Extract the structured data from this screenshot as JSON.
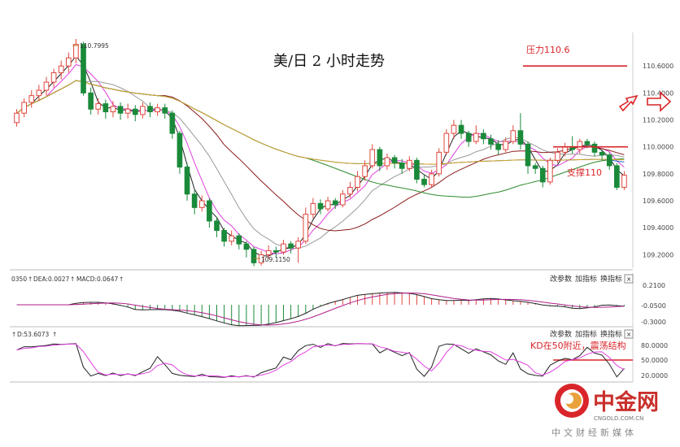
{
  "chart_data": [
    {
      "type": "candlestick",
      "title": "美/日 2 小时走势",
      "y_ticks": [
        "110.6000",
        "110.4000",
        "110.2000",
        "110.0000",
        "109.8000",
        "109.6000",
        "109.4000",
        "109.2000"
      ],
      "ylim": [
        109.1,
        110.8
      ],
      "high_label": "110.7995",
      "low_label": "109.1150",
      "candles": [
        [
          110.18,
          110.25,
          110.15,
          110.28
        ],
        [
          110.25,
          110.33,
          110.22,
          110.36
        ],
        [
          110.33,
          110.38,
          110.29,
          110.42
        ],
        [
          110.38,
          110.42,
          110.34,
          110.46
        ],
        [
          110.42,
          110.48,
          110.38,
          110.52
        ],
        [
          110.48,
          110.55,
          110.44,
          110.58
        ],
        [
          110.55,
          110.6,
          110.5,
          110.64
        ],
        [
          110.6,
          110.66,
          110.55,
          110.7
        ],
        [
          110.66,
          110.76,
          110.62,
          110.8
        ],
        [
          110.76,
          110.4,
          110.38,
          110.78
        ],
        [
          110.4,
          110.28,
          110.24,
          110.44
        ],
        [
          110.28,
          110.32,
          110.24,
          110.36
        ],
        [
          110.32,
          110.26,
          110.21,
          110.35
        ],
        [
          110.26,
          110.3,
          110.22,
          110.34
        ],
        [
          110.3,
          110.25,
          110.2,
          110.33
        ],
        [
          110.25,
          110.28,
          110.21,
          110.32
        ],
        [
          110.28,
          110.24,
          110.19,
          110.31
        ],
        [
          110.24,
          110.3,
          110.21,
          110.33
        ],
        [
          110.3,
          110.26,
          110.22,
          110.33
        ],
        [
          110.26,
          110.29,
          110.23,
          110.32
        ],
        [
          110.29,
          110.25,
          110.21,
          110.32
        ],
        [
          110.25,
          110.1,
          110.06,
          110.27
        ],
        [
          110.1,
          109.85,
          109.8,
          110.12
        ],
        [
          109.85,
          109.65,
          109.6,
          109.88
        ],
        [
          109.65,
          109.55,
          109.5,
          109.68
        ],
        [
          109.55,
          109.6,
          109.52,
          109.64
        ],
        [
          109.6,
          109.45,
          109.4,
          109.62
        ],
        [
          109.45,
          109.38,
          109.33,
          109.48
        ],
        [
          109.38,
          109.3,
          109.26,
          109.4
        ],
        [
          109.3,
          109.34,
          109.27,
          109.38
        ],
        [
          109.34,
          109.28,
          109.24,
          109.36
        ],
        [
          109.28,
          109.24,
          109.18,
          109.3
        ],
        [
          109.24,
          109.14,
          109.115,
          109.26
        ],
        [
          109.14,
          109.2,
          109.12,
          109.23
        ],
        [
          109.2,
          109.23,
          109.17,
          109.27
        ],
        [
          109.23,
          109.22,
          109.18,
          109.26
        ],
        [
          109.22,
          109.28,
          109.2,
          109.31
        ],
        [
          109.28,
          109.25,
          109.21,
          109.3
        ],
        [
          109.25,
          109.3,
          109.14,
          109.33
        ],
        [
          109.3,
          109.5,
          109.28,
          109.55
        ],
        [
          109.5,
          109.58,
          109.47,
          109.62
        ],
        [
          109.58,
          109.54,
          109.5,
          109.61
        ],
        [
          109.54,
          109.6,
          109.52,
          109.63
        ],
        [
          109.6,
          109.57,
          109.54,
          109.62
        ],
        [
          109.57,
          109.65,
          109.55,
          109.68
        ],
        [
          109.65,
          109.7,
          109.62,
          109.74
        ],
        [
          109.7,
          109.78,
          109.67,
          109.82
        ],
        [
          109.78,
          109.86,
          109.75,
          109.9
        ],
        [
          109.86,
          109.98,
          109.84,
          110.02
        ],
        [
          109.98,
          109.86,
          109.82,
          110.0
        ],
        [
          109.86,
          109.92,
          109.83,
          109.95
        ],
        [
          109.92,
          109.88,
          109.84,
          109.94
        ],
        [
          109.88,
          109.84,
          109.8,
          109.91
        ],
        [
          109.84,
          109.9,
          109.82,
          109.93
        ],
        [
          109.9,
          109.76,
          109.73,
          109.92
        ],
        [
          109.76,
          109.72,
          109.7,
          109.79
        ],
        [
          109.72,
          109.8,
          109.7,
          109.83
        ],
        [
          109.8,
          109.96,
          109.78,
          109.99
        ],
        [
          109.96,
          110.1,
          109.94,
          110.13
        ],
        [
          110.1,
          110.16,
          110.06,
          110.2
        ],
        [
          110.16,
          110.1,
          110.06,
          110.2
        ],
        [
          110.1,
          110.04,
          110.0,
          110.12
        ],
        [
          110.04,
          110.1,
          110.02,
          110.16
        ],
        [
          110.1,
          110.06,
          110.02,
          110.13
        ],
        [
          110.06,
          110.02,
          109.98,
          110.09
        ],
        [
          110.02,
          109.98,
          109.94,
          110.05
        ],
        [
          109.98,
          110.04,
          109.96,
          110.07
        ],
        [
          110.04,
          110.12,
          110.02,
          110.16
        ],
        [
          110.12,
          110.02,
          109.98,
          110.25
        ],
        [
          110.02,
          109.86,
          109.8,
          110.04
        ],
        [
          109.86,
          109.84,
          109.8,
          109.88
        ],
        [
          109.84,
          109.74,
          109.7,
          109.86
        ],
        [
          109.74,
          109.9,
          109.72,
          109.92
        ],
        [
          109.9,
          109.96,
          109.88,
          109.99
        ],
        [
          109.96,
          110.0,
          109.93,
          110.03
        ],
        [
          110.0,
          109.98,
          109.95,
          110.08
        ],
        [
          109.98,
          110.04,
          109.95,
          110.06
        ],
        [
          110.04,
          110.02,
          109.99,
          110.06
        ],
        [
          110.02,
          109.96,
          109.93,
          110.04
        ],
        [
          109.96,
          109.94,
          109.9,
          109.98
        ],
        [
          109.94,
          109.86,
          109.83,
          109.96
        ],
        [
          109.86,
          109.7,
          109.68,
          109.88
        ],
        [
          109.7,
          109.79,
          109.68,
          109.82
        ]
      ],
      "ma_colors": [
        "#222222",
        "#e040e0",
        "#999999",
        "#8b1a1a",
        "#2e8b2e",
        "#1e6fd9",
        "#d9a520"
      ],
      "annotations": [
        {
          "text": "压力110.6",
          "color": "#d9252a",
          "level": 110.6
        },
        {
          "text": "支撑110",
          "color": "#d9252a",
          "level": 110.0
        }
      ]
    },
    {
      "type": "bar",
      "panel": "MACD",
      "legend": "DEA:0.0027",
      "legend2": "MACD:0.0647",
      "left_label": "0350",
      "y_ticks": [
        "0.2100",
        "-0.0500",
        "-0.3000"
      ],
      "buttons": [
        "改参数",
        "加指标",
        "换指标"
      ],
      "close": "×"
    },
    {
      "type": "line",
      "panel": "KD",
      "legend": "D:53.6073",
      "y_ticks": [
        "80.0000",
        "50.0000",
        "20.0000"
      ],
      "buttons": [
        "改参数",
        "加指标",
        "换指标"
      ],
      "close": "×",
      "note": "KD在50附近，震荡结构"
    }
  ],
  "watermark": {
    "brand": "中金网",
    "domain": "CNGOLD.COM.CN",
    "tagline": "中文财经新媒体"
  }
}
